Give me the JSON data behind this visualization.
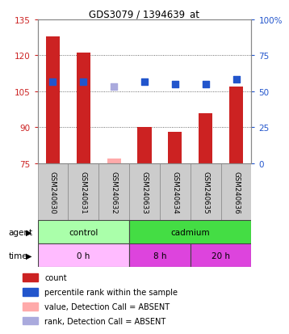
{
  "title": "GDS3079 / 1394639_at",
  "samples": [
    "GSM240630",
    "GSM240631",
    "GSM240632",
    "GSM240633",
    "GSM240634",
    "GSM240635",
    "GSM240636"
  ],
  "bar_values": [
    128,
    121,
    77,
    90,
    88,
    96,
    107
  ],
  "bar_absent": [
    false,
    false,
    true,
    false,
    false,
    false,
    false
  ],
  "rank_values": [
    109,
    109,
    107,
    109,
    108,
    108,
    110
  ],
  "rank_absent": [
    false,
    false,
    true,
    false,
    false,
    false,
    false
  ],
  "ylim_left": [
    75,
    135
  ],
  "ylim_right": [
    0,
    100
  ],
  "yticks_left": [
    75,
    90,
    105,
    120,
    135
  ],
  "yticks_right": [
    0,
    25,
    50,
    75,
    100
  ],
  "ytick_labels_left": [
    "75",
    "90",
    "105",
    "120",
    "135"
  ],
  "ytick_labels_right": [
    "0",
    "25",
    "50",
    "75",
    "100%"
  ],
  "bar_color": "#cc2222",
  "bar_absent_color": "#ffaaaa",
  "rank_color": "#2255cc",
  "rank_absent_color": "#aaaadd",
  "agent_control_color": "#aaffaa",
  "agent_cadmium_color": "#44dd44",
  "time_0h_color": "#ffbbff",
  "time_8h_color": "#dd44dd",
  "time_20h_color": "#dd44dd",
  "label_gray_color": "#cccccc",
  "bar_width": 0.45,
  "rank_marker_size": 40,
  "grid_linestyle": "dotted",
  "grid_color": "#444444",
  "legend_items": [
    {
      "label": "count",
      "color": "#cc2222"
    },
    {
      "label": "percentile rank within the sample",
      "color": "#2255cc"
    },
    {
      "label": "value, Detection Call = ABSENT",
      "color": "#ffaaaa"
    },
    {
      "label": "rank, Detection Call = ABSENT",
      "color": "#aaaadd"
    }
  ]
}
